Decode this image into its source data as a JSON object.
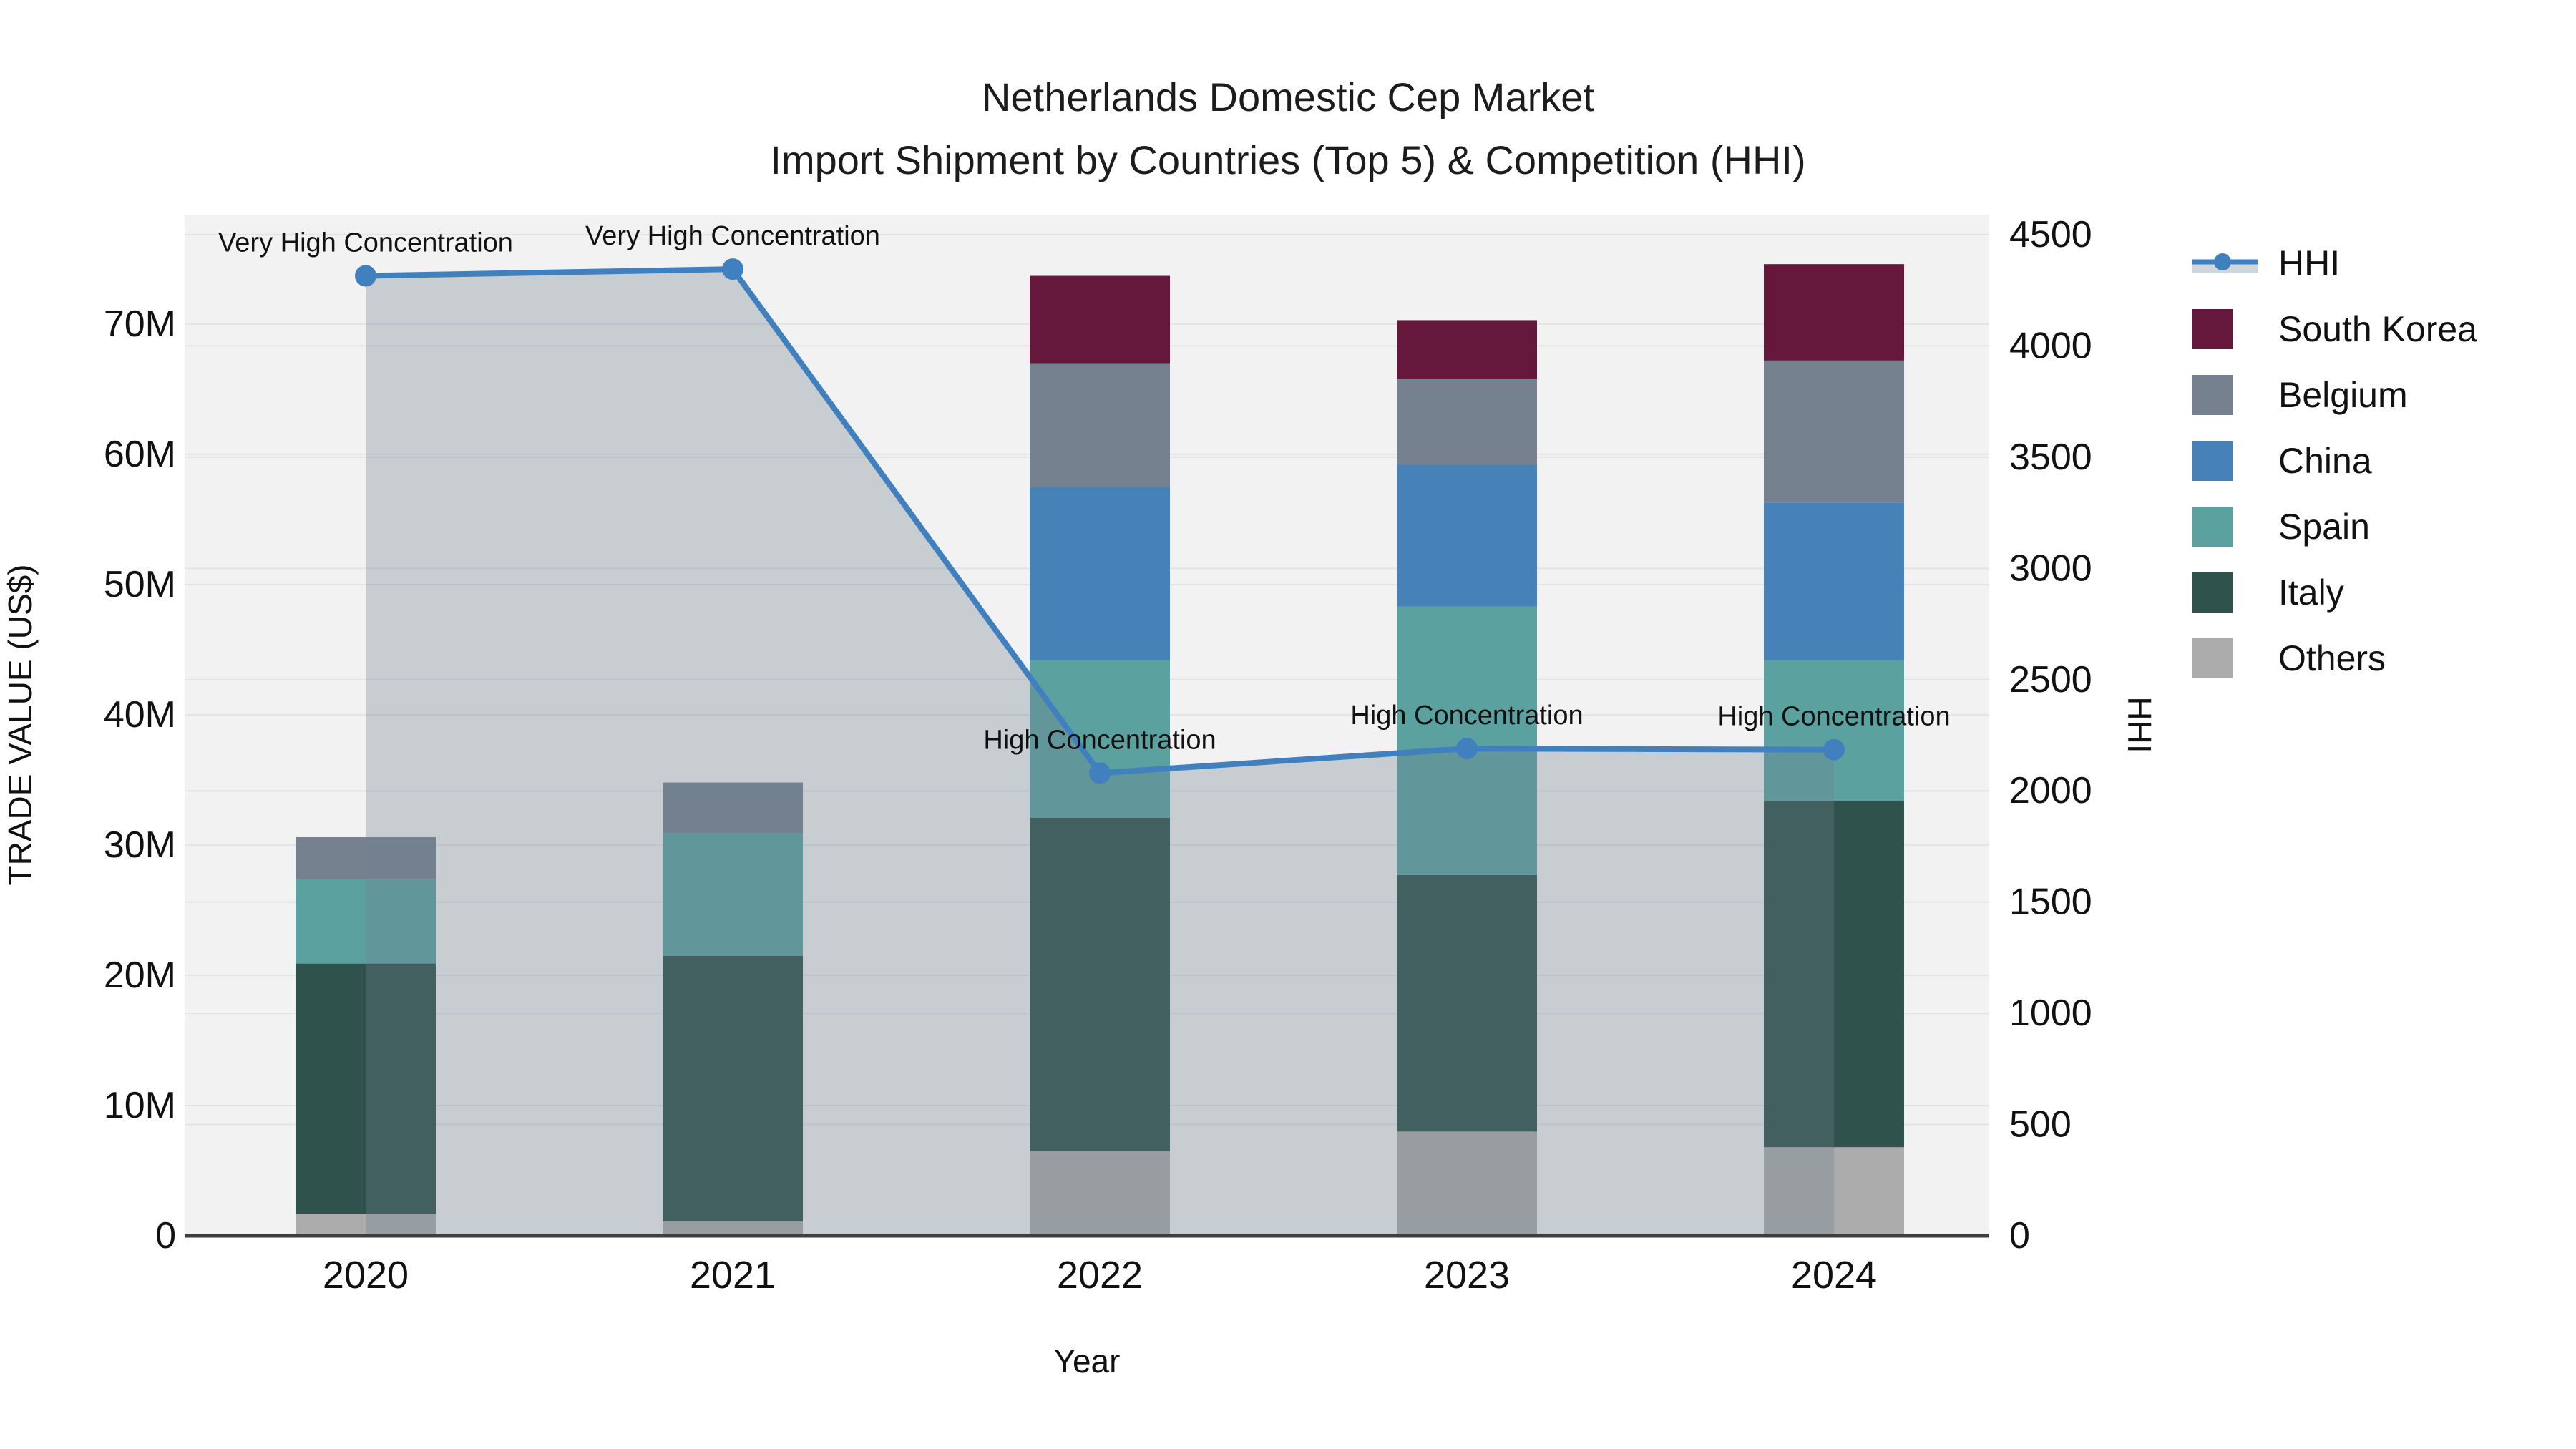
{
  "title": {
    "line1": "Netherlands Domestic Cep Market",
    "line2": "Import Shipment by Countries (Top 5) & Competition (HHI)"
  },
  "axes": {
    "x": {
      "title": "Year",
      "tick_labels": [
        "2020",
        "2021",
        "2022",
        "2023",
        "2024"
      ]
    },
    "y_left": {
      "title": "TRADE VALUE (US$)",
      "tick_labels": [
        "0",
        "10M",
        "20M",
        "30M",
        "40M",
        "50M",
        "60M",
        "70M"
      ],
      "tick_values_millions": [
        0,
        10,
        20,
        30,
        40,
        50,
        60,
        70
      ],
      "range_millions": [
        0,
        78.4
      ]
    },
    "y_right": {
      "title": "HHI",
      "tick_labels": [
        "0",
        "500",
        "1000",
        "1500",
        "2000",
        "2500",
        "3000",
        "3500",
        "4000",
        "4500"
      ],
      "tick_values": [
        0,
        500,
        1000,
        1500,
        2000,
        2500,
        3000,
        3500,
        4000,
        4500
      ],
      "range": [
        0,
        4590
      ]
    }
  },
  "legend": {
    "items": [
      {
        "label": "HHI",
        "color": "#4080bf",
        "kind": "line"
      },
      {
        "label": "South Korea",
        "color": "#65183c",
        "kind": "bar"
      },
      {
        "label": "Belgium",
        "color": "#75818f",
        "kind": "bar"
      },
      {
        "label": "China",
        "color": "#4681b8",
        "kind": "bar"
      },
      {
        "label": "Spain",
        "color": "#5ba19f",
        "kind": "bar"
      },
      {
        "label": "Italy",
        "color": "#2f524c",
        "kind": "bar"
      },
      {
        "label": "Others",
        "color": "#acacac",
        "kind": "bar"
      }
    ]
  },
  "colors": {
    "plot_bg": "#f2f2f2",
    "figure_bg": "#ffffff",
    "gridline": "#e4e4e4",
    "axis_line": "#3f3f3f",
    "hhi_line": "#4080bf",
    "area_fill": "rgba(112,128,144,0.32)",
    "text": "#111111"
  },
  "chart_data": {
    "type": "bar",
    "subtype": "stacked-bar-with-line",
    "title": "Netherlands Domestic Cep Market — Import Shipment by Countries (Top 5) & Competition (HHI)",
    "xlabel": "Year",
    "ylabel_left": "TRADE VALUE (US$)",
    "ylabel_right": "HHI",
    "categories": [
      "2020",
      "2021",
      "2022",
      "2023",
      "2024"
    ],
    "stack_order_bottom_to_top": [
      "Others",
      "Italy",
      "Spain",
      "China",
      "Belgium",
      "South Korea"
    ],
    "unit": "million US$",
    "series": [
      {
        "name": "Others",
        "values": [
          1.7,
          1.1,
          6.5,
          8.0,
          6.8
        ]
      },
      {
        "name": "Italy",
        "values": [
          19.2,
          20.4,
          25.6,
          19.7,
          26.6
        ]
      },
      {
        "name": "Spain",
        "values": [
          6.5,
          9.4,
          12.1,
          20.6,
          10.8
        ]
      },
      {
        "name": "China",
        "values": [
          0,
          0,
          13.3,
          10.9,
          12.1
        ]
      },
      {
        "name": "Belgium",
        "values": [
          3.2,
          3.9,
          9.5,
          6.6,
          10.9
        ]
      },
      {
        "name": "South Korea",
        "values": [
          0,
          0,
          6.7,
          4.5,
          7.4
        ]
      }
    ],
    "totals_millions": [
      30.6,
      34.8,
      73.7,
      70.3,
      74.6
    ],
    "line_series": {
      "name": "HHI",
      "axis": "right",
      "values": [
        4315,
        4345,
        2080,
        2190,
        2185
      ]
    },
    "annotations": [
      {
        "category": "2020",
        "text": "Very High Concentration"
      },
      {
        "category": "2021",
        "text": "Very High Concentration"
      },
      {
        "category": "2022",
        "text": "High Concentration"
      },
      {
        "category": "2023",
        "text": "High Concentration"
      },
      {
        "category": "2024",
        "text": "High Concentration"
      }
    ],
    "ylim_left_millions": [
      0,
      78.4
    ],
    "ylim_right": [
      0,
      4590
    ],
    "grid": true,
    "legend_position": "right"
  }
}
